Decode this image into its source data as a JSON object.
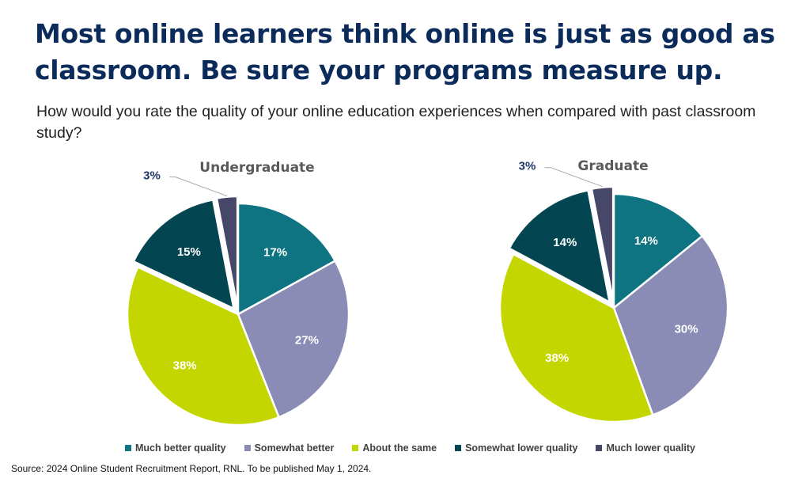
{
  "headline": "Most online learners think online is just as good as classroom. Be sure your programs measure up.",
  "question": "How would you rate the quality of your online education experiences when compared with past classroom study?",
  "source": "Source: 2024 Online Student Recruitment Report, RNL. To be published May 1, 2024.",
  "chart_data": [
    {
      "type": "pie",
      "title": "Undergraduate",
      "categories": [
        "Much better quality",
        "Somewhat better",
        "About the same",
        "Somewhat lower quality",
        "Much lower quality"
      ],
      "values": [
        17,
        27,
        38,
        15,
        3
      ],
      "labels": [
        "17%",
        "27%",
        "38%",
        "15%",
        "3%"
      ],
      "exploded": [
        "Somewhat lower quality",
        "Much lower quality"
      ]
    },
    {
      "type": "pie",
      "title": "Graduate",
      "categories": [
        "Much better quality",
        "Somewhat better",
        "About the same",
        "Somewhat lower quality",
        "Much lower quality"
      ],
      "values": [
        14,
        30,
        38,
        14,
        3
      ],
      "labels": [
        "14%",
        "30%",
        "38%",
        "14%",
        "3%"
      ],
      "exploded": [
        "Somewhat lower quality",
        "Much lower quality"
      ]
    }
  ],
  "legend": [
    {
      "label": "Much better quality",
      "color": "#0e7482"
    },
    {
      "label": "Somewhat better",
      "color": "#8a8cb6"
    },
    {
      "label": "About the same",
      "color": "#c4d600"
    },
    {
      "label": "Somewhat lower quality",
      "color": "#034550"
    },
    {
      "label": "Much lower quality",
      "color": "#474769"
    }
  ],
  "colors": {
    "headline": "#0b2b5b",
    "chart_title": "#5a5a5a",
    "outside_label": "#1f3864",
    "inside_label": "#ffffff"
  }
}
